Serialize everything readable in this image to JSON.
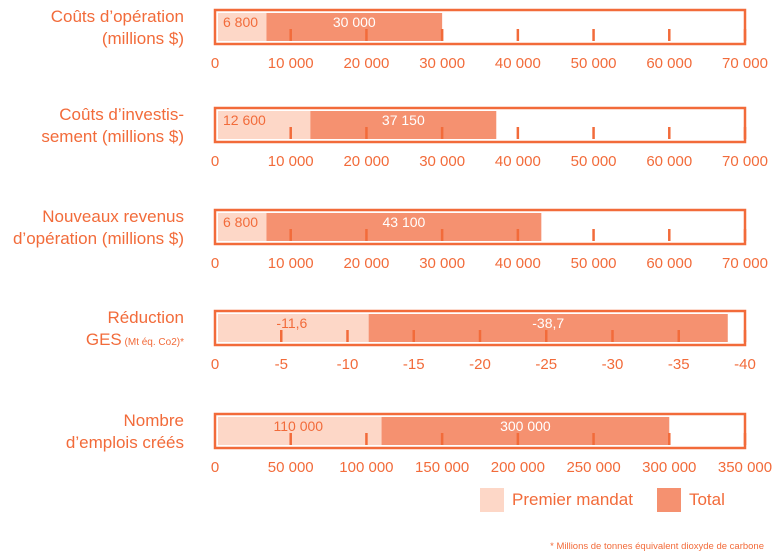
{
  "colors": {
    "accent": "#f26b3a",
    "first_mandate": "#fdd7c7",
    "total": "#f59170",
    "frame": "#f26b3a"
  },
  "legend": {
    "first_label": "Premier mandat",
    "total_label": "Total"
  },
  "footnote": "* Millions de tonnes équivalent dioxyde de carbone",
  "chart_data": [
    {
      "type": "bar",
      "label_lines": [
        "Coûts d’opération",
        "(millions $)"
      ],
      "label_suffix": "",
      "xlim": [
        0,
        70000
      ],
      "ticks": [
        0,
        10000,
        20000,
        30000,
        40000,
        50000,
        60000,
        70000
      ],
      "tick_labels": [
        "0",
        "10 000",
        "20 000",
        "30 000",
        "40 000",
        "50 000",
        "60 000",
        "70 000"
      ],
      "series": [
        {
          "name": "Premier mandat",
          "value": 6800,
          "label": "6 800"
        },
        {
          "name": "Total",
          "value": 30000,
          "label": "30 000"
        }
      ]
    },
    {
      "type": "bar",
      "label_lines": [
        "Coûts d’investis-",
        "sement (millions $)"
      ],
      "label_suffix": "",
      "xlim": [
        0,
        70000
      ],
      "ticks": [
        0,
        10000,
        20000,
        30000,
        40000,
        50000,
        60000,
        70000
      ],
      "tick_labels": [
        "0",
        "10 000",
        "20 000",
        "30 000",
        "40 000",
        "50 000",
        "60 000",
        "70 000"
      ],
      "series": [
        {
          "name": "Premier mandat",
          "value": 12600,
          "label": "12 600"
        },
        {
          "name": "Total",
          "value": 37150,
          "label": "37 150"
        }
      ]
    },
    {
      "type": "bar",
      "label_lines": [
        "Nouveaux revenus",
        "d’opération (millions $)"
      ],
      "label_suffix": "",
      "xlim": [
        0,
        70000
      ],
      "ticks": [
        0,
        10000,
        20000,
        30000,
        40000,
        50000,
        60000,
        70000
      ],
      "tick_labels": [
        "0",
        "10 000",
        "20 000",
        "30 000",
        "40 000",
        "50 000",
        "60 000",
        "70 000"
      ],
      "series": [
        {
          "name": "Premier mandat",
          "value": 6800,
          "label": "6 800"
        },
        {
          "name": "Total",
          "value": 43100,
          "label": "43 100"
        }
      ]
    },
    {
      "type": "bar",
      "label_lines": [
        "Réduction",
        "GES"
      ],
      "label_suffix": "(Mt éq. Co2)*",
      "xlim": [
        0,
        -40
      ],
      "ticks": [
        0,
        -5,
        -10,
        -15,
        -20,
        -25,
        -30,
        -35,
        -40
      ],
      "tick_labels": [
        "0",
        "-5",
        "-10",
        "-15",
        "-20",
        "-25",
        "-30",
        "-35",
        "-40"
      ],
      "series": [
        {
          "name": "Premier mandat",
          "value": -11.6,
          "label": "-11,6"
        },
        {
          "name": "Total",
          "value": -38.7,
          "label": "-38,7"
        }
      ]
    },
    {
      "type": "bar",
      "label_lines": [
        "Nombre",
        "d’emplois créés"
      ],
      "label_suffix": "",
      "xlim": [
        0,
        350000
      ],
      "ticks": [
        0,
        50000,
        100000,
        150000,
        200000,
        250000,
        300000,
        350000
      ],
      "tick_labels": [
        "0",
        "50 000",
        "100 000",
        "150 000",
        "200 000",
        "250 000",
        "300 000",
        "350 000"
      ],
      "series": [
        {
          "name": "Premier mandat",
          "value": 110000,
          "label": "110 000"
        },
        {
          "name": "Total",
          "value": 300000,
          "label": "300 000"
        }
      ]
    }
  ]
}
